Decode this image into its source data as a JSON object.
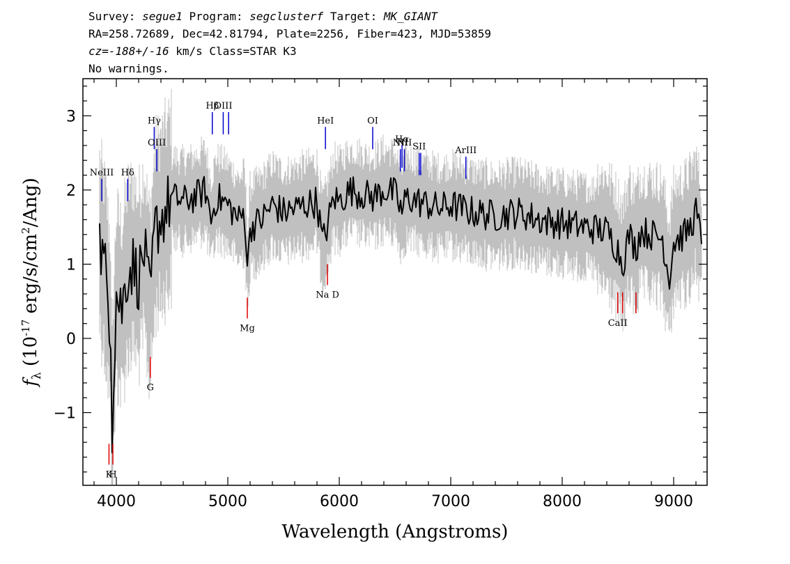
{
  "header": {
    "line1": {
      "survey_label": "Survey:",
      "survey": "segue1",
      "program_label": "Program:",
      "program": "segclusterf",
      "target_label": "Target:",
      "target": "MK_GIANT"
    },
    "line2": "RA=258.72689, Dec=42.81794, Plate=2256, Fiber=423, MJD=53859",
    "line3": {
      "cz_label": "cz=",
      "cz_value": "-188+/-16",
      "rest": " km/s Class=STAR K3"
    },
    "line4": "No warnings."
  },
  "chart_data": {
    "type": "line",
    "xlabel": "Wavelength (Angstroms)",
    "ylabel": "f_λ (10^-17 erg/s/cm^2/Ang)",
    "xlim": [
      3700,
      9300
    ],
    "ylim": [
      -1.98,
      3.5
    ],
    "x_ticks": [
      4000,
      5000,
      6000,
      7000,
      8000,
      9000
    ],
    "x_tick_labels": [
      "4000",
      "5000",
      "6000",
      "7000",
      "8000",
      "9000"
    ],
    "y_ticks": [
      -1,
      0,
      1,
      2,
      3
    ],
    "y_tick_labels": [
      "−1",
      "0",
      "1",
      "2",
      "3"
    ],
    "colors": {
      "flux": "#000000",
      "noise": "#c0c0c0",
      "emission": "#0000cc",
      "absorption": "#dd0000"
    },
    "series": [
      {
        "role": "flux (black)",
        "x": [
          3850,
          3900,
          3950,
          3960,
          3975,
          4000,
          4050,
          4100,
          4150,
          4200,
          4250,
          4300,
          4350,
          4400,
          4500,
          4600,
          4700,
          4800,
          4850,
          4900,
          5000,
          5100,
          5150,
          5180,
          5200,
          5300,
          5400,
          5500,
          5600,
          5700,
          5800,
          5850,
          5890,
          5950,
          6000,
          6100,
          6200,
          6300,
          6400,
          6500,
          6563,
          6600,
          6700,
          6800,
          6900,
          7000,
          7100,
          7200,
          7400,
          7600,
          7800,
          8000,
          8200,
          8400,
          8500,
          8542,
          8600,
          8662,
          8700,
          8800,
          8900,
          8960,
          9000,
          9100,
          9150,
          9200,
          9250
        ],
        "values": [
          1.3,
          0.9,
          0.2,
          -1.4,
          -0.5,
          0.6,
          0.4,
          0.9,
          1.0,
          0.8,
          1.2,
          0.5,
          1.5,
          1.6,
          1.9,
          1.85,
          1.9,
          2.0,
          1.6,
          1.9,
          1.8,
          1.6,
          1.7,
          0.9,
          1.5,
          1.6,
          1.8,
          1.7,
          1.75,
          1.8,
          1.85,
          1.3,
          1.5,
          1.9,
          1.85,
          2.0,
          1.95,
          1.9,
          2.0,
          1.95,
          1.7,
          1.9,
          1.85,
          1.8,
          1.75,
          1.8,
          1.75,
          1.7,
          1.65,
          1.7,
          1.6,
          1.55,
          1.5,
          1.45,
          1.2,
          1.0,
          1.4,
          1.2,
          1.45,
          1.4,
          1.35,
          0.8,
          1.3,
          1.4,
          1.5,
          1.7,
          1.3
        ]
      }
    ],
    "emission_lines": [
      {
        "label": "NeIII",
        "x": 3869,
        "y_top": 2.15
      },
      {
        "label": "Hδ",
        "x": 4102,
        "y_top": 2.15
      },
      {
        "label": "Hγ",
        "x": 4340,
        "y_top": 2.85
      },
      {
        "label": "OIII",
        "x": 4363,
        "y_top": 2.55
      },
      {
        "label": "Hβ",
        "x": 4861,
        "y_top": 3.05
      },
      {
        "label": "OIII",
        "x": 4959,
        "y_top": 3.05
      },
      {
        "label": "",
        "x": 5007,
        "y_top": 3.05
      },
      {
        "label": "HeI",
        "x": 5876,
        "y_top": 2.85
      },
      {
        "label": "OI",
        "x": 6300,
        "y_top": 2.85
      },
      {
        "label": "NII",
        "x": 6548,
        "y_top": 2.55
      },
      {
        "label": "Hα",
        "x": 6563,
        "y_top": 2.6
      },
      {
        "label": "NII",
        "x": 6584,
        "y_top": 2.55
      },
      {
        "label": "SII",
        "x": 6717,
        "y_top": 2.5
      },
      {
        "label": "",
        "x": 6731,
        "y_top": 2.5
      },
      {
        "label": "ArIII",
        "x": 7136,
        "y_top": 2.45
      }
    ],
    "absorption_lines": [
      {
        "label": "K",
        "x": 3934,
        "y_top": -1.42
      },
      {
        "label": "H",
        "x": 3969,
        "y_top": -1.42
      },
      {
        "label": "G",
        "x": 4305,
        "y_top": -0.25
      },
      {
        "label": "Mg",
        "x": 5175,
        "y_top": 0.55
      },
      {
        "label": "Na D",
        "x": 5894,
        "y_top": 1.0
      },
      {
        "label": "CaII",
        "x": 8498,
        "y_top": 0.62
      },
      {
        "label": "",
        "x": 8542,
        "y_top": 0.62
      },
      {
        "label": "",
        "x": 8662,
        "y_top": 0.62
      }
    ]
  }
}
